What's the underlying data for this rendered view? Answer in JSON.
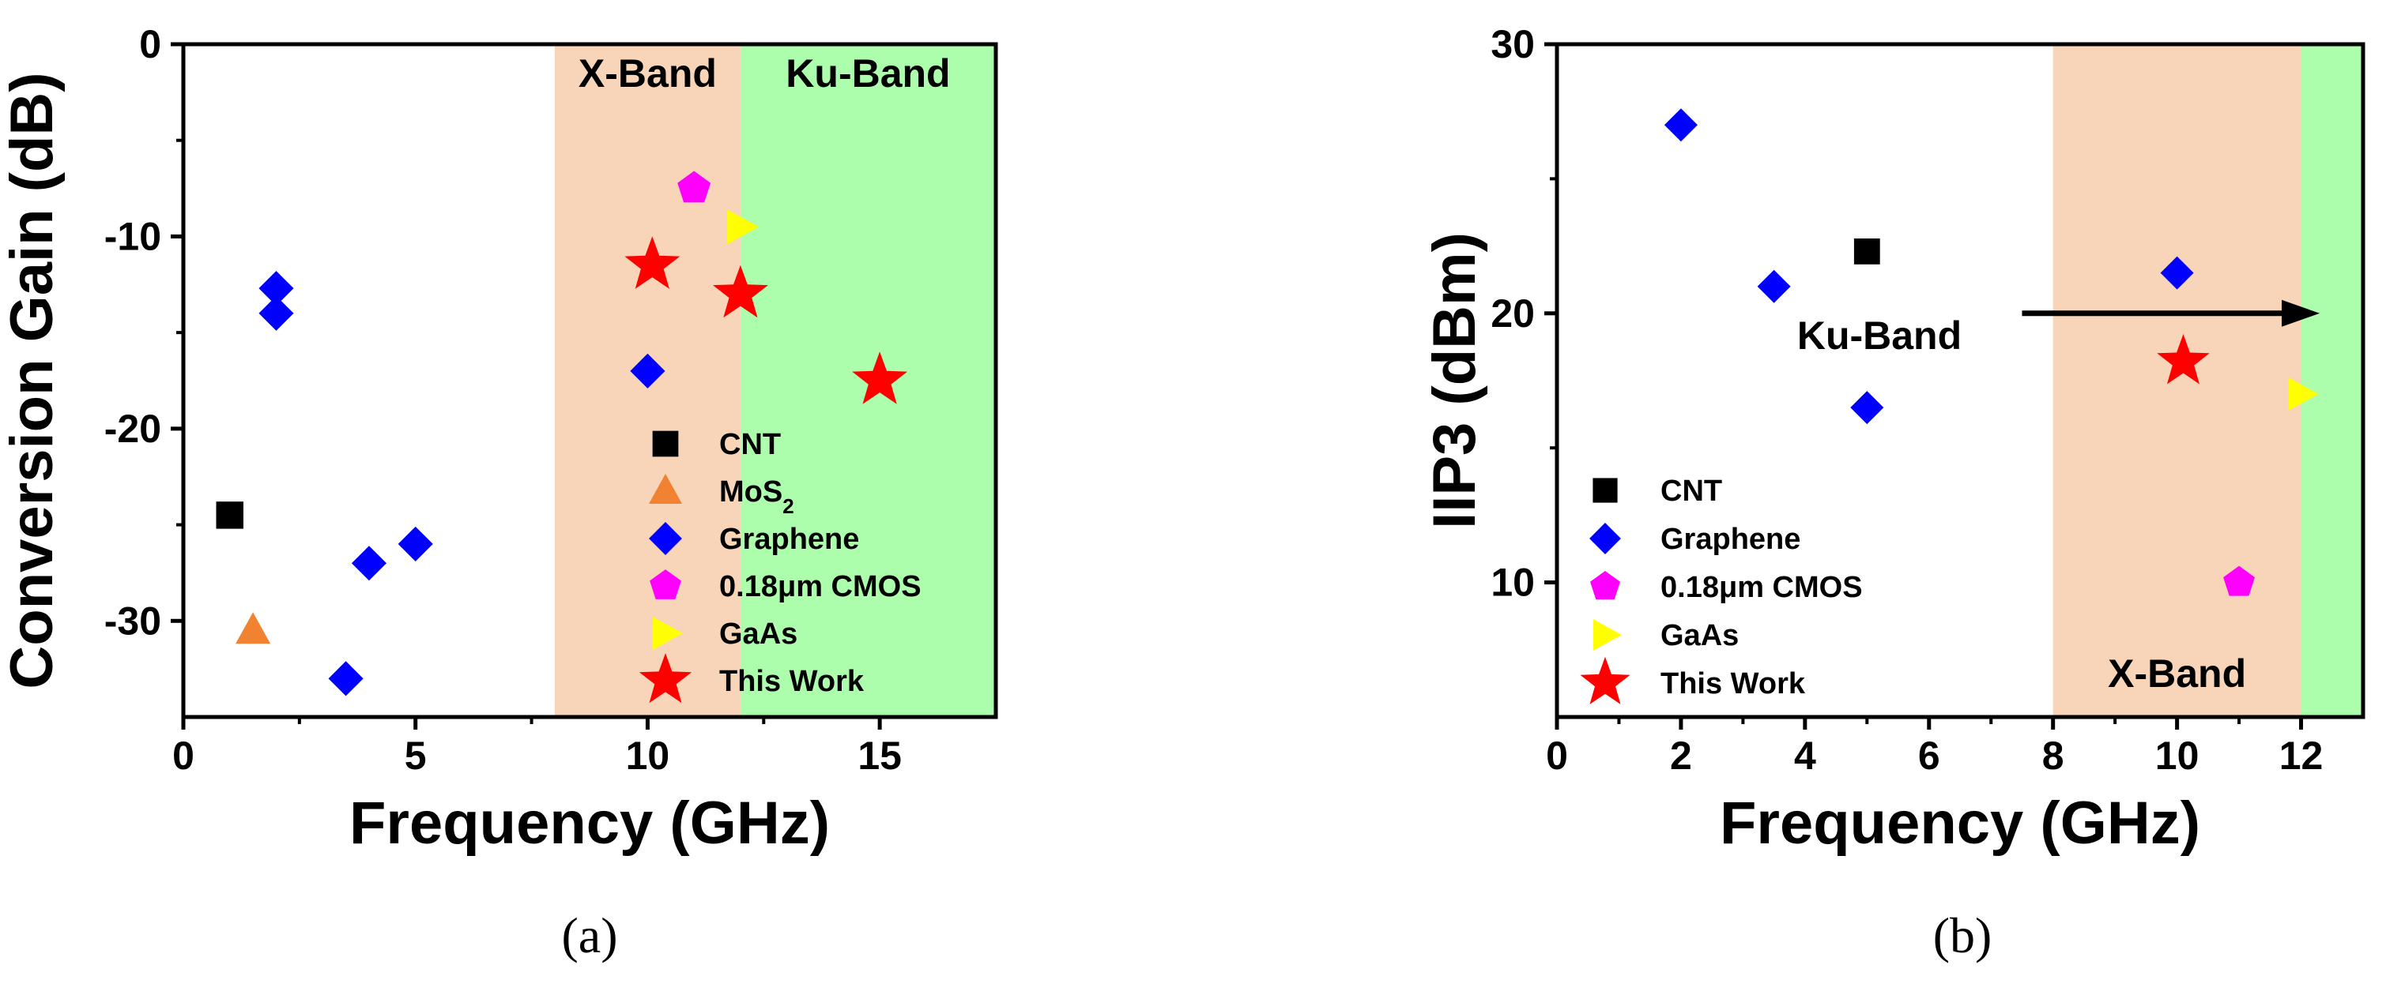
{
  "chart_data": [
    {
      "type": "scatter",
      "caption": "(a)",
      "xlabel": "Frequency (GHz)",
      "ylabel": "Conversion Gain (dB)",
      "xlim": [
        0,
        17.5
      ],
      "ylim": [
        -35,
        0
      ],
      "xticks": [
        0,
        5,
        10,
        15
      ],
      "yticks": [
        0,
        -10,
        -20,
        -30
      ],
      "bands": [
        {
          "label": "X-Band",
          "from": 8,
          "to": 12,
          "color": "#f8d5b9"
        },
        {
          "label": "Ku-Band",
          "from": 12,
          "to": 17.5,
          "color": "#acfdac"
        }
      ],
      "legend_position": "bottom-right",
      "series": [
        {
          "name": "CNT",
          "marker": "square",
          "color": "#000000",
          "points": [
            [
              1,
              -24.5
            ]
          ]
        },
        {
          "name": "MoS2",
          "marker": "triangle-up",
          "color": "#f08232",
          "points": [
            [
              1.5,
              -30.5
            ]
          ]
        },
        {
          "name": "Graphene",
          "marker": "diamond",
          "color": "#0000ff",
          "points": [
            [
              2,
              -12.7
            ],
            [
              2,
              -14
            ],
            [
              3.5,
              -33
            ],
            [
              4,
              -27
            ],
            [
              5,
              -26
            ],
            [
              10,
              -17
            ]
          ]
        },
        {
          "name": "0.18μm CMOS",
          "marker": "pentagon",
          "color": "#ff00ff",
          "points": [
            [
              11,
              -7.5
            ]
          ]
        },
        {
          "name": "GaAs",
          "marker": "triangle-right",
          "color": "#ffff00",
          "points": [
            [
              12,
              -9.5
            ]
          ]
        },
        {
          "name": "This Work",
          "marker": "star",
          "color": "#ff0000",
          "points": [
            [
              10.1,
              -11.5
            ],
            [
              12,
              -13
            ],
            [
              15,
              -17.5
            ]
          ]
        }
      ]
    },
    {
      "type": "scatter",
      "caption": "(b)",
      "xlabel": "Frequency (GHz)",
      "ylabel": "IIP3 (dBm)",
      "xlim": [
        0,
        13
      ],
      "ylim": [
        5,
        30
      ],
      "xticks": [
        0,
        2,
        4,
        6,
        8,
        10,
        12
      ],
      "yticks": [
        10,
        20,
        30
      ],
      "bands": [
        {
          "label": "X-Band",
          "from": 8,
          "to": 12,
          "color": "#f8d5b9"
        },
        {
          "label": "",
          "from": 12,
          "to": 13,
          "color": "#acfdac"
        }
      ],
      "annotation": {
        "label": "Ku-Band",
        "arrow_from": [
          7.5,
          20
        ],
        "arrow_to": [
          12.3,
          20
        ]
      },
      "legend_position": "bottom-left",
      "series": [
        {
          "name": "CNT",
          "marker": "square",
          "color": "#000000",
          "points": [
            [
              5,
              22.3
            ]
          ]
        },
        {
          "name": "Graphene",
          "marker": "diamond",
          "color": "#0000ff",
          "points": [
            [
              2,
              27
            ],
            [
              3.5,
              21
            ],
            [
              5,
              16.5
            ],
            [
              10,
              21.5
            ]
          ]
        },
        {
          "name": "0.18μm CMOS",
          "marker": "pentagon",
          "color": "#ff00ff",
          "points": [
            [
              11,
              10
            ]
          ]
        },
        {
          "name": "GaAs",
          "marker": "triangle-right",
          "color": "#ffff00",
          "points": [
            [
              12,
              17
            ]
          ]
        },
        {
          "name": "This Work",
          "marker": "star",
          "color": "#ff0000",
          "points": [
            [
              10.1,
              18.2
            ]
          ]
        }
      ]
    }
  ]
}
